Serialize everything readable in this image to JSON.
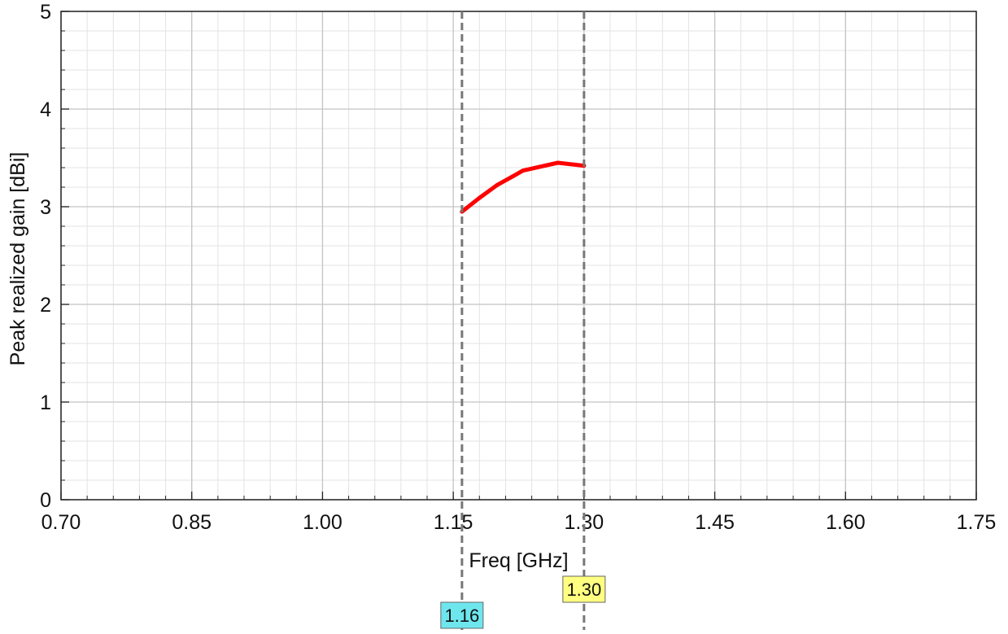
{
  "chart_data": {
    "type": "line",
    "xlabel": "Freq [GHz]",
    "ylabel": "Peak realized gain [dBi]",
    "xlim": [
      0.7,
      1.75
    ],
    "ylim": [
      0,
      5
    ],
    "x_ticks": [
      "0.70",
      "0.85",
      "1.00",
      "1.15",
      "1.30",
      "1.45",
      "1.60",
      "1.75"
    ],
    "y_ticks": [
      "0",
      "1",
      "2",
      "3",
      "4",
      "5"
    ],
    "grid": true,
    "series": [
      {
        "color": "#ff0000",
        "x": [
          1.16,
          1.18,
          1.2,
          1.23,
          1.27,
          1.3
        ],
        "y": [
          2.95,
          3.09,
          3.22,
          3.37,
          3.45,
          3.42
        ]
      }
    ],
    "markers": [
      {
        "x": 1.16,
        "label": "1.16",
        "color": "#6ee6ee"
      },
      {
        "x": 1.3,
        "label": "1.30",
        "color": "#ffff80"
      }
    ]
  }
}
